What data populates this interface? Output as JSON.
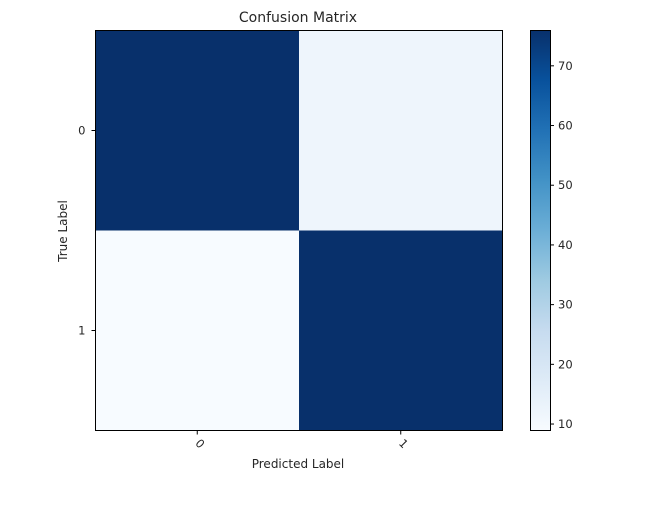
{
  "chart_data": {
    "type": "heatmap",
    "title": "Confusion Matrix",
    "xlabel": "Predicted Label",
    "ylabel": "True Label",
    "x_categories": [
      "0",
      "1"
    ],
    "y_categories": [
      "0",
      "1"
    ],
    "values": [
      [
        76,
        12
      ],
      [
        9,
        76
      ]
    ],
    "colormap": "Blues",
    "colorbar": {
      "range": [
        9,
        76
      ],
      "ticks": [
        10,
        20,
        30,
        40,
        50,
        60,
        70
      ]
    },
    "xtick_rotation_deg": -45
  }
}
